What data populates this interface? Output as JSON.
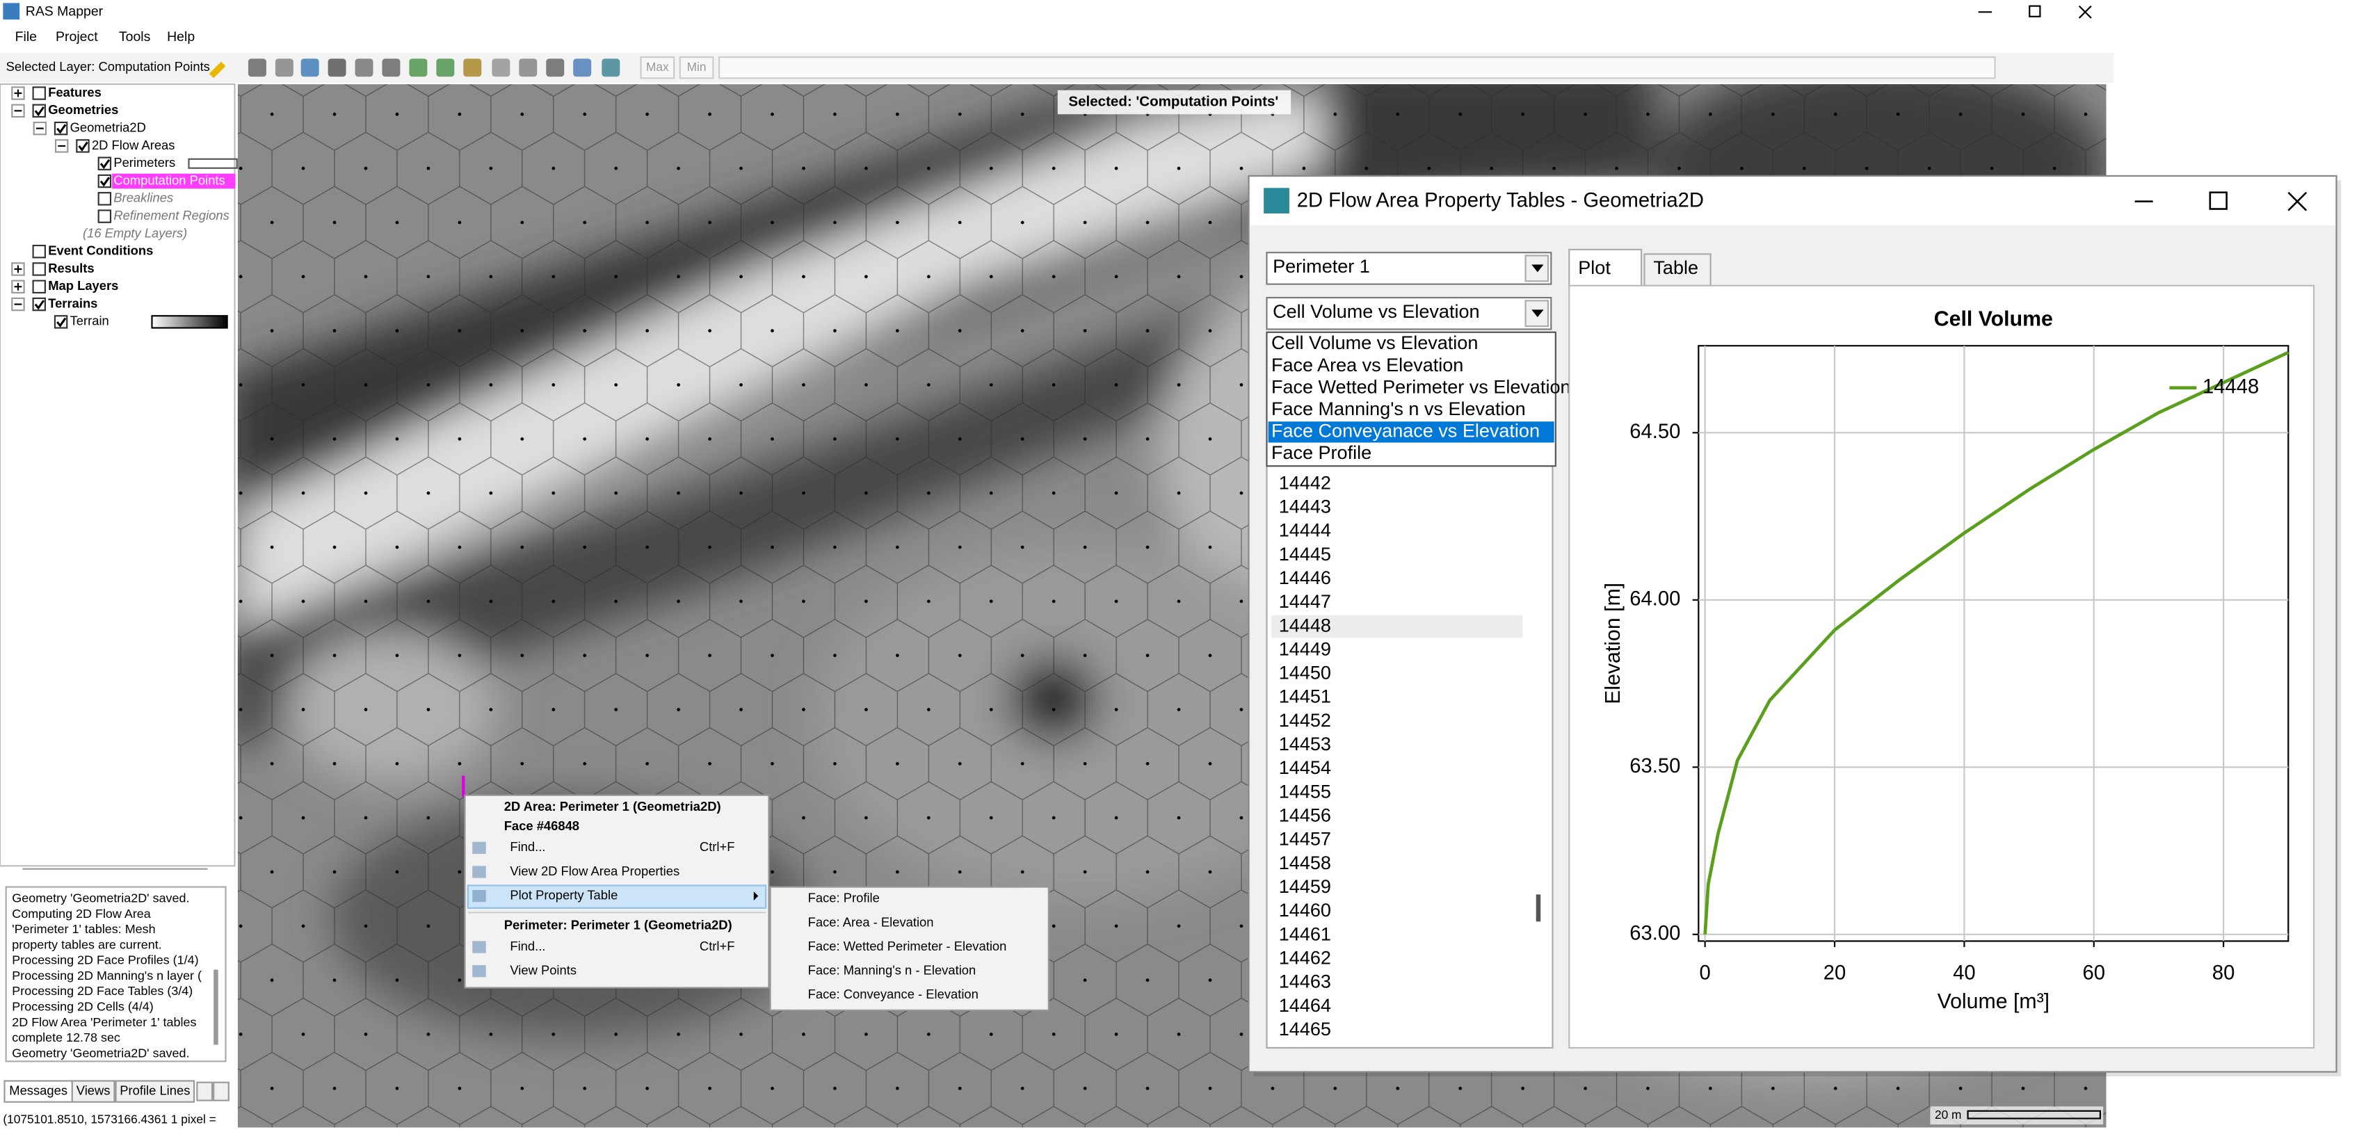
{
  "window": {
    "title": "RAS Mapper",
    "menu": [
      "File",
      "Project",
      "Tools",
      "Help"
    ],
    "selected_layer": "Selected Layer: Computation Points",
    "zoom_buttons": [
      "Max",
      "Min"
    ]
  },
  "layers": [
    {
      "label": "Features",
      "checked": false
    },
    {
      "label": "Geometries",
      "checked": true
    },
    {
      "label": "Geometria2D",
      "checked": true
    },
    {
      "label": "2D Flow Areas",
      "checked": true
    },
    {
      "label": "Perimeters",
      "checked": true
    },
    {
      "label": "Computation Points",
      "checked": true
    },
    {
      "label": "Breaklines",
      "checked": false
    },
    {
      "label": "Refinement Regions",
      "checked": false
    },
    {
      "label": "(16 Empty Layers)"
    },
    {
      "label": "Event Conditions",
      "checked": false
    },
    {
      "label": "Results",
      "checked": false
    },
    {
      "label": "Map Layers",
      "checked": false
    },
    {
      "label": "Terrains",
      "checked": true
    },
    {
      "label": "Terrain",
      "checked": true
    }
  ],
  "messages": [
    "Geometry 'Geometria2D' saved.",
    "Computing 2D Flow Area",
    "'Perimeter 1' tables: Mesh",
    "property tables are current.",
    "Processing 2D Face Profiles (1/4)",
    "Processing 2D Manning's n layer (",
    "Processing 2D Face Tables (3/4)",
    "Processing 2D Cells (4/4)",
    "2D Flow Area 'Perimeter 1' tables",
    "complete 12.78 sec",
    "Geometry 'Geometria2D' saved."
  ],
  "bottom_tabs": [
    "Messages",
    "Views",
    "Profile Lines"
  ],
  "status": "(1075101.8510, 1573166.4361  1 pixel =",
  "map": {
    "banner": "Selected: 'Computation Points'",
    "scale": "20 m"
  },
  "context_menu": {
    "area_title": "2D Area: Perimeter 1 (Geometria2D)",
    "face": "Face #46848",
    "area_items": [
      {
        "label": "Find...",
        "shortcut": "Ctrl+F"
      },
      {
        "label": "View 2D Flow Area Properties"
      },
      {
        "label": "Plot Property Table"
      }
    ],
    "perimeter_title": "Perimeter: Perimeter 1 (Geometria2D)",
    "perimeter_items": [
      {
        "label": "Find...",
        "shortcut": "Ctrl+F"
      },
      {
        "label": "View Points"
      }
    ],
    "submenu": [
      "Face: Profile",
      "Face: Area - Elevation",
      "Face: Wetted Perimeter - Elevation",
      "Face: Manning's n - Elevation",
      "Face: Conveyance - Elevation"
    ]
  },
  "dialog": {
    "title": "2D Flow Area Property Tables - Geometria2D",
    "area_combo": "Perimeter 1",
    "table_combo": "Cell Volume vs Elevation",
    "dropdown": [
      "Cell Volume vs Elevation",
      "Face Area vs Elevation",
      "Face Wetted Perimeter vs Elevation",
      "Face Manning's n vs Elevation",
      "Face Conveyanace vs Elevation",
      "Face Profile"
    ],
    "dropdown_selected": 4,
    "ids": [
      14442,
      14443,
      14444,
      14445,
      14446,
      14447,
      14448,
      14449,
      14450,
      14451,
      14452,
      14453,
      14454,
      14455,
      14456,
      14457,
      14458,
      14459,
      14460,
      14461,
      14462,
      14463,
      14464,
      14465
    ],
    "ids_selected": 6,
    "tabs": [
      "Plot",
      "Table"
    ]
  },
  "chart_data": {
    "type": "line",
    "title": "Cell Volume",
    "x_label": "Volume [m³]",
    "y_label": "Elevation [m]",
    "xlim": [
      -1,
      90
    ],
    "ylim": [
      62.98,
      64.76
    ],
    "xticks": [
      0,
      20,
      40,
      60,
      80
    ],
    "yticks": [
      {
        "value": 63,
        "label": "63.00"
      },
      {
        "value": 63.5,
        "label": "63.50"
      },
      {
        "value": 64,
        "label": "64.00"
      },
      {
        "value": 64.5,
        "label": "64.50"
      }
    ],
    "grid": true,
    "legend": "top-right",
    "x": [
      0,
      0.5,
      2,
      5,
      10,
      20,
      30,
      40,
      50,
      60,
      70,
      80,
      90
    ],
    "series": [
      {
        "name": "14448",
        "color": "#5aa01e",
        "values": [
          63.0,
          63.15,
          63.3,
          63.52,
          63.7,
          63.91,
          64.06,
          64.2,
          64.33,
          64.45,
          64.56,
          64.65,
          64.74
        ]
      }
    ]
  }
}
